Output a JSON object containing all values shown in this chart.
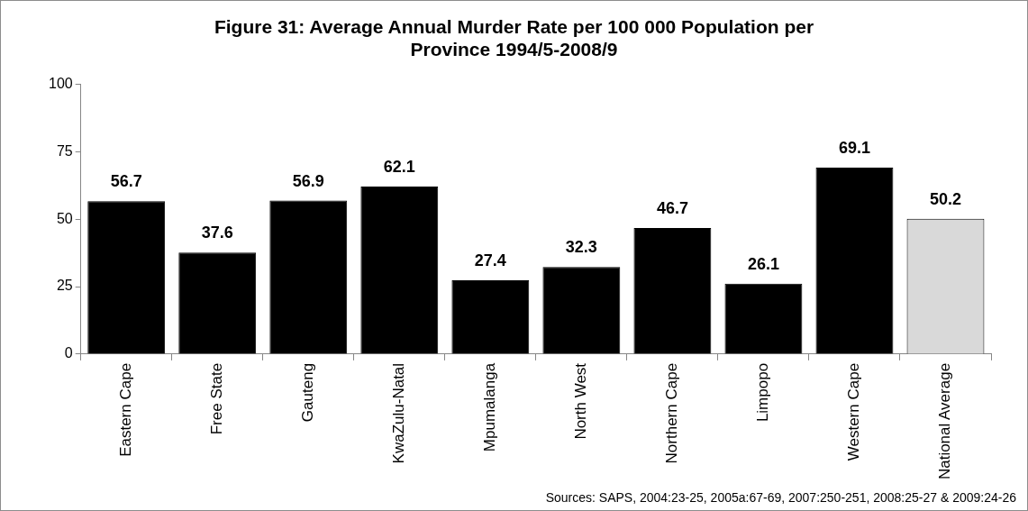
{
  "chart_data": {
    "type": "bar",
    "title": "Figure 31: Average Annual Murder Rate per 100 000 Population per Province 1994/5-2008/9",
    "categories": [
      "Eastern Cape",
      "Free State",
      "Gauteng",
      "KwaZulu-Natal",
      "Mpumalanga",
      "North West",
      "Northern Cape",
      "Limpopo",
      "Western Cape",
      "National Average"
    ],
    "values": [
      56.7,
      37.6,
      56.9,
      62.1,
      27.4,
      32.3,
      46.7,
      26.1,
      69.1,
      50.2
    ],
    "colors": [
      "#000000",
      "#000000",
      "#000000",
      "#000000",
      "#000000",
      "#000000",
      "#000000",
      "#000000",
      "#000000",
      "#d9d9d9"
    ],
    "ylim": [
      0,
      100
    ],
    "yticks": [
      0,
      25,
      50,
      75,
      100
    ],
    "grid": false,
    "legend": false,
    "data_labels": true,
    "annotations": [
      "Sources: SAPS, 2004:23-25, 2005a:67-69, 2007:250-251, 2008:25-27 & 2009:24-26"
    ]
  }
}
